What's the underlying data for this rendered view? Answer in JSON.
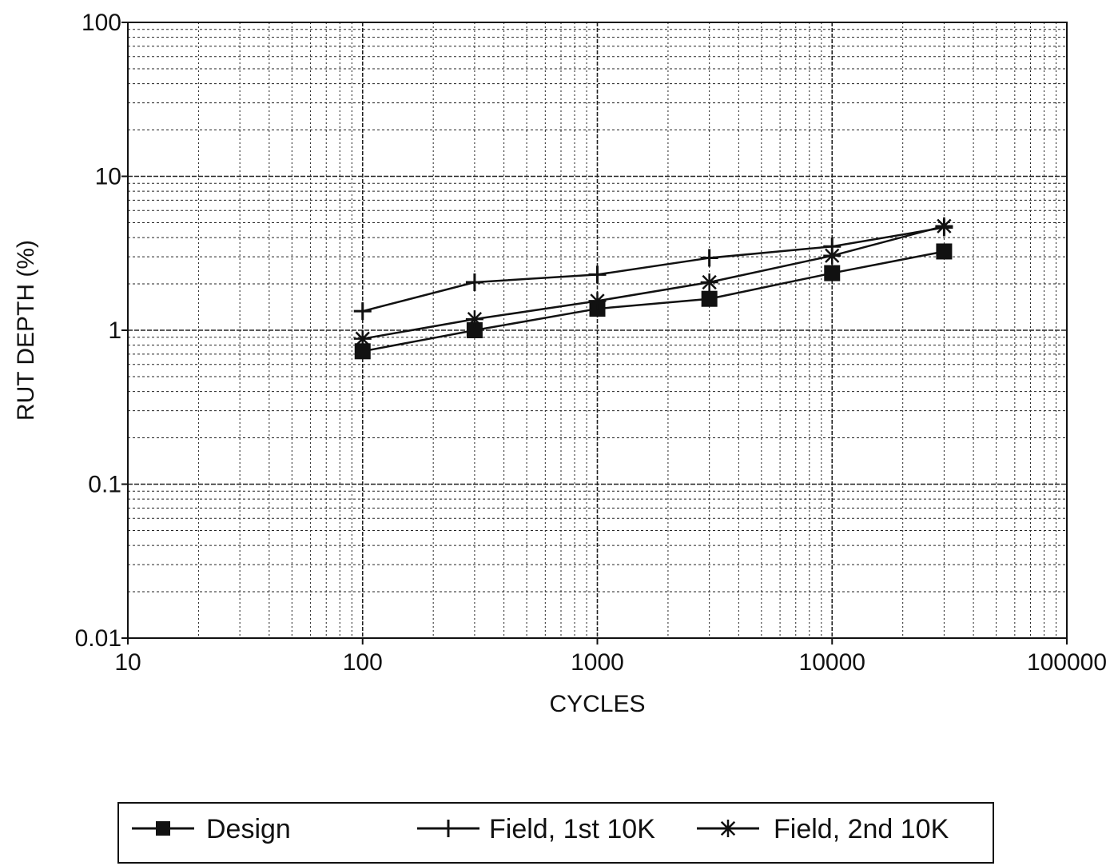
{
  "chart_data": {
    "type": "line",
    "title": "",
    "xlabel": "CYCLES",
    "ylabel": "RUT DEPTH (%)",
    "xscale": "log",
    "yscale": "log",
    "xlim": [
      10,
      100000
    ],
    "ylim": [
      0.01,
      100
    ],
    "x_tick_labels": [
      "10",
      "100",
      "1000",
      "10000",
      "100000"
    ],
    "y_tick_labels": [
      "0.01",
      "0.1",
      "1",
      "10",
      "100"
    ],
    "grid": true,
    "legend_position": "bottom",
    "x": [
      100,
      300,
      1000,
      3000,
      10000,
      30000
    ],
    "series": [
      {
        "name": "Design",
        "marker": "square",
        "values": [
          0.73,
          1.0,
          1.38,
          1.6,
          2.35,
          3.25
        ]
      },
      {
        "name": "Field, 1st 10K",
        "marker": "plus",
        "values": [
          1.33,
          2.05,
          2.3,
          2.95,
          3.5,
          4.65
        ]
      },
      {
        "name": "Field, 2nd 10K",
        "marker": "star",
        "values": [
          0.88,
          1.18,
          1.55,
          2.05,
          3.05,
          4.75
        ]
      }
    ]
  }
}
